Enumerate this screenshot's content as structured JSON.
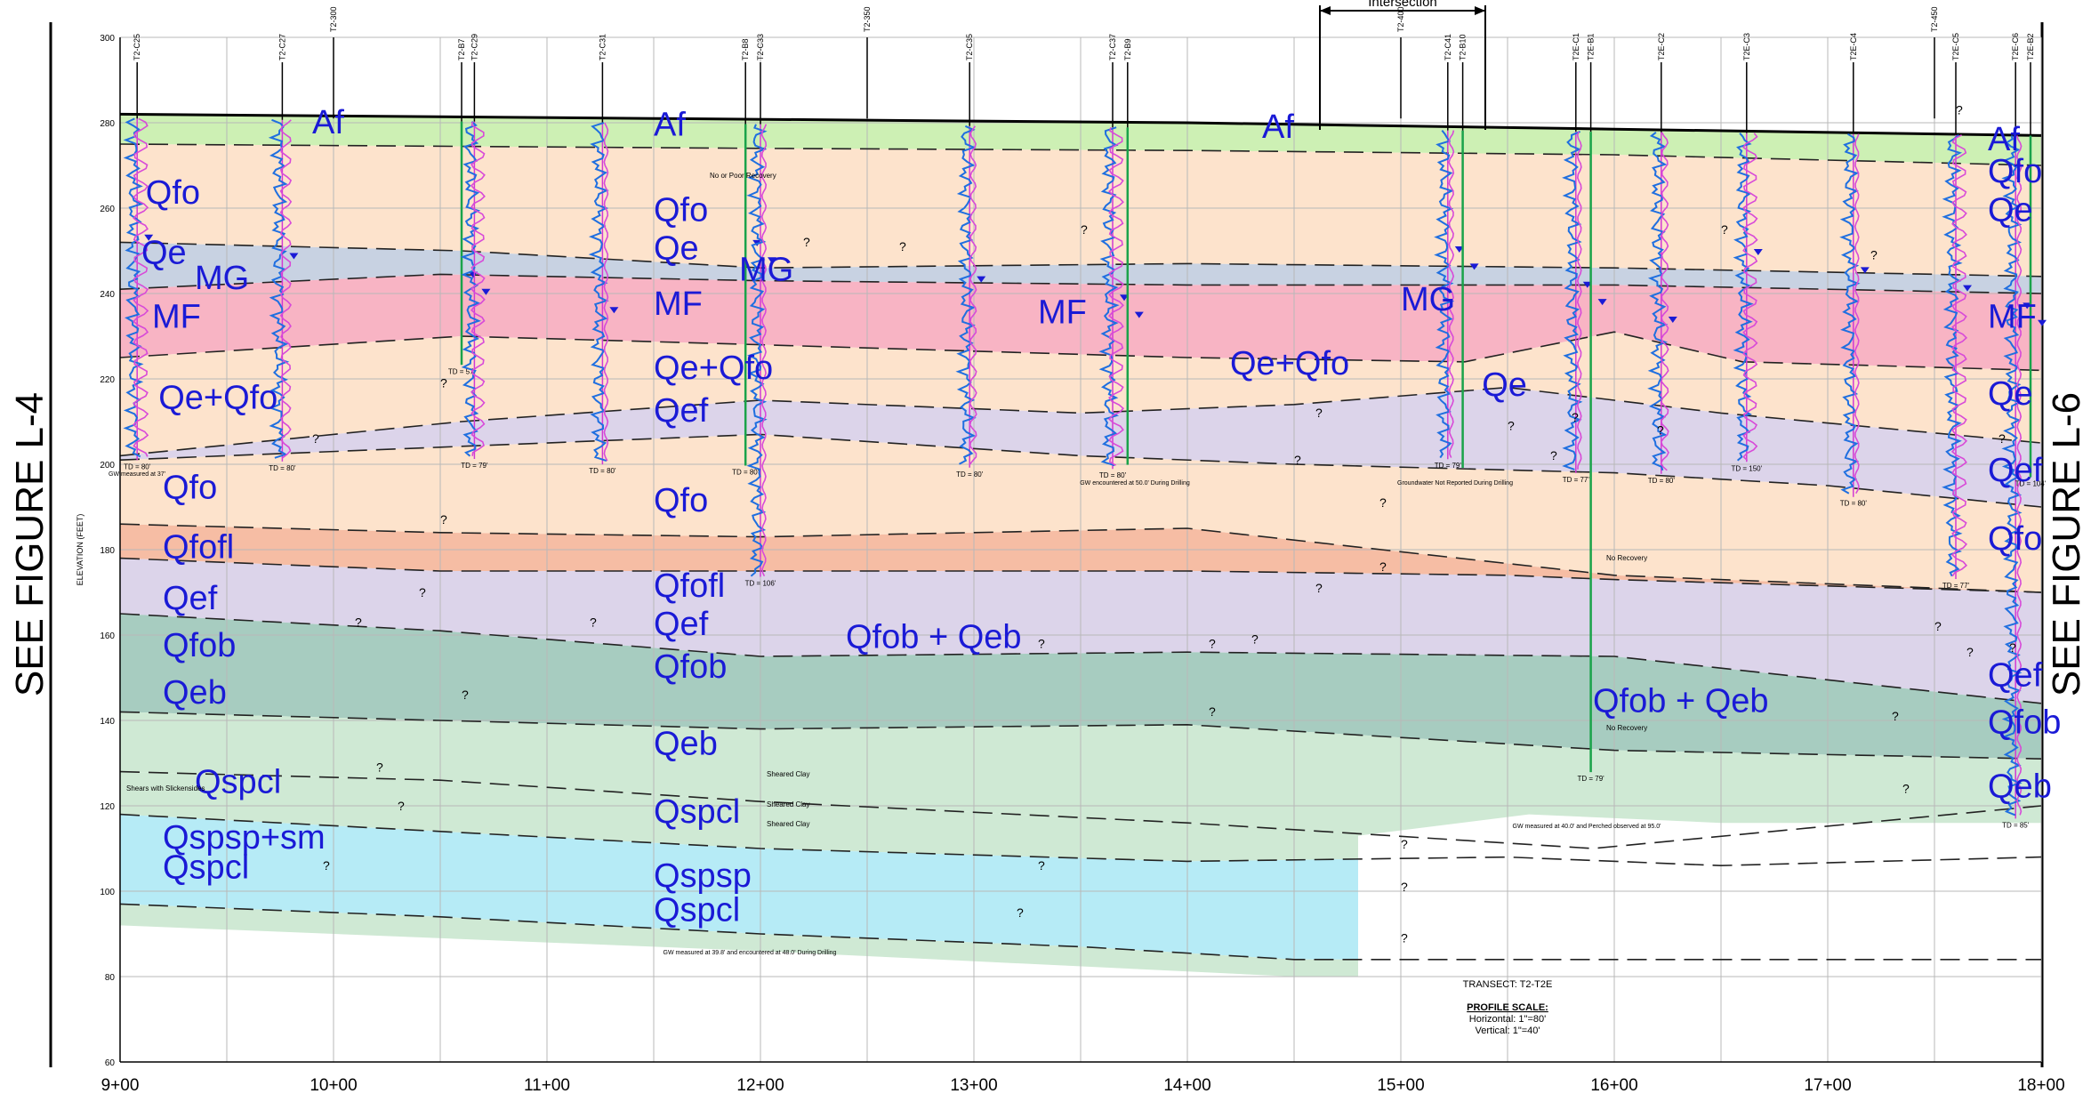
{
  "side_labels": {
    "left": "SEE FIGURE L-4",
    "right": "SEE FIGURE L-6"
  },
  "axis": {
    "y_label": "ELEVATION (FEET)",
    "y_ticks": [
      "300",
      "280",
      "260",
      "240",
      "220",
      "200",
      "180",
      "160",
      "140",
      "120",
      "100",
      "80",
      "60"
    ],
    "x_ticks": [
      "9+00",
      "10+00",
      "11+00",
      "12+00",
      "13+00",
      "14+00",
      "15+00",
      "16+00",
      "17+00",
      "18+00"
    ]
  },
  "header": {
    "intersection": "Intersection"
  },
  "borings": [
    {
      "id": "T2-C25",
      "station": 9.08,
      "color": "#d23ad2"
    },
    {
      "id": "T2-C27",
      "station": 9.76,
      "color": "#d23ad2"
    },
    {
      "id": "T2-B7",
      "station": 10.6,
      "color": "#1aa34a"
    },
    {
      "id": "T2-C29",
      "station": 10.66,
      "color": "#d23ad2"
    },
    {
      "id": "T2-C31",
      "station": 11.26,
      "color": "#d23ad2"
    },
    {
      "id": "T2-B8",
      "station": 11.93,
      "color": "#1aa34a"
    },
    {
      "id": "T2-C33",
      "station": 12.0,
      "color": "#d23ad2"
    },
    {
      "id": "T2-C35",
      "station": 12.98,
      "color": "#d23ad2"
    },
    {
      "id": "T2-C37",
      "station": 13.65,
      "color": "#d23ad2"
    },
    {
      "id": "T2-B9",
      "station": 13.72,
      "color": "#1aa34a"
    },
    {
      "id": "T2-C41",
      "station": 15.22,
      "color": "#d23ad2"
    },
    {
      "id": "T2-B10",
      "station": 15.29,
      "color": "#1aa34a"
    },
    {
      "id": "T2E-C1",
      "station": 15.82,
      "color": "#d23ad2"
    },
    {
      "id": "T2E-B1",
      "station": 15.89,
      "color": "#1aa34a"
    },
    {
      "id": "T2E-C2",
      "station": 16.22,
      "color": "#d23ad2"
    },
    {
      "id": "T2E-C3",
      "station": 16.62,
      "color": "#d23ad2"
    },
    {
      "id": "T2E-C4",
      "station": 17.12,
      "color": "#d23ad2"
    },
    {
      "id": "T2E-C5",
      "station": 17.6,
      "color": "#d23ad2"
    },
    {
      "id": "T2E-C6",
      "station": 17.88,
      "color": "#d23ad2"
    },
    {
      "id": "T2E-B2",
      "station": 17.95,
      "color": "#1aa34a"
    }
  ],
  "cross_refs": [
    "T2-300",
    "T2-350",
    "T2-400",
    "T2-450"
  ],
  "td_labels": [
    "TD = 80'",
    "TD = 80'",
    "TD = 57'",
    "TD = 79'",
    "TD = 80'",
    "TD = 80'",
    "TD = 106'",
    "TD = 80'",
    "TD = 80'",
    "TD = 79'",
    "TD = 77'",
    "TD = 79'",
    "TD = 80'",
    "TD = 150'",
    "TD = 80'",
    "TD = 77'",
    "TD = 85'",
    "TD = 104'",
    "TD = 16"
  ],
  "notes": {
    "no_recovery": "No Recovery",
    "poor_recovery": "No or Poor Recovery",
    "sheared_clay": "Sheared Clay",
    "shears": "Shears with Slickensides",
    "gw_during": "GW encountered at 50.0' During Drilling",
    "gw_not_reported": "Groundwater Not Reported During Drilling",
    "gw_measured": "GW measured at 37'",
    "gw_b8": "GW measured at 39.8' and encountered at 48.0' During Drilling",
    "gw_b1": "GW measured at 40.0' and Perched observed at 95.0'"
  },
  "units": {
    "Af": "Af",
    "Qfo": "Qfo",
    "Qe": "Qe",
    "MG": "MG",
    "MF": "MF",
    "QeQfo": "Qe+Qfo",
    "Qef": "Qef",
    "Qfofl": "Qfofl",
    "Qfob": "Qfob",
    "QfobQeb": "Qfob + Qeb",
    "Qeb": "Qeb",
    "Qspcl": "Qspcl",
    "Qspspsm": "Qspsp+sm",
    "Qspsp": "Qspsp"
  },
  "transect": "TRANSECT: T2-T2E",
  "profile_scale": {
    "title": "PROFILE SCALE:",
    "horizontal": "Horizontal: 1\"=80'",
    "vertical": "Vertical: 1\"=40'"
  },
  "colors": {
    "fill_Af": "#cdf0b4",
    "fill_Qfo": "#fde3cc",
    "fill_Qe": "#c8d2e2",
    "fill_MF": "#f8b4c4",
    "fill_Qef": "#dcd4ea",
    "fill_Qfofl": "#f6bda4",
    "fill_Qfob": "#a7ccc0",
    "fill_Qeb": "#cfe9d4",
    "fill_Qsp": "#b6ebf6",
    "log_blue": "#1f6fe0",
    "log_magenta": "#d84ad8",
    "label": "#1a1ad6"
  }
}
